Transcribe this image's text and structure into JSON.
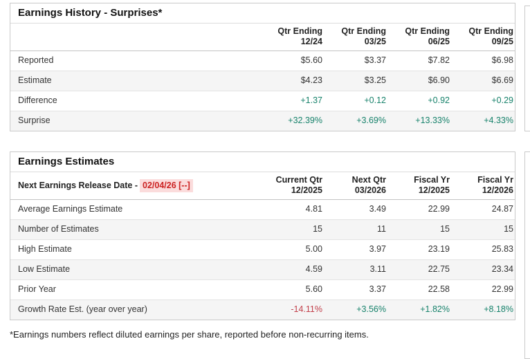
{
  "colors": {
    "positive_value": "#17826b",
    "negative_value": "#c2404b",
    "release_date_text": "#cc2222",
    "release_date_highlight": "#fbdcdc",
    "row_alt_background": "#f5f5f5",
    "card_border": "#c9c9c9"
  },
  "history": {
    "title": "Earnings History - Surprises*",
    "columns": [
      {
        "line1": "Qtr Ending",
        "line2": "12/24"
      },
      {
        "line1": "Qtr Ending",
        "line2": "03/25"
      },
      {
        "line1": "Qtr Ending",
        "line2": "06/25"
      },
      {
        "line1": "Qtr Ending",
        "line2": "09/25"
      }
    ],
    "rows": [
      {
        "label": "Reported",
        "values": [
          "$5.60",
          "$3.37",
          "$7.82",
          "$6.98"
        ]
      },
      {
        "label": "Estimate",
        "values": [
          "$4.23",
          "$3.25",
          "$6.90",
          "$6.69"
        ]
      },
      {
        "label": "Difference",
        "values": [
          "+1.37",
          "+0.12",
          "+0.92",
          "+0.29"
        ]
      },
      {
        "label": "Surprise",
        "values": [
          "+32.39%",
          "+3.69%",
          "+13.33%",
          "+4.33%"
        ]
      }
    ]
  },
  "estimates": {
    "title": "Earnings Estimates",
    "release_label": "Next Earnings Release Date -",
    "release_date": "02/04/26 [--]",
    "columns": [
      {
        "line1": "Current Qtr",
        "line2": "12/2025"
      },
      {
        "line1": "Next Qtr",
        "line2": "03/2026"
      },
      {
        "line1": "Fiscal Yr",
        "line2": "12/2025"
      },
      {
        "line1": "Fiscal Yr",
        "line2": "12/2026"
      }
    ],
    "rows": [
      {
        "label": "Average Earnings Estimate",
        "values": [
          "4.81",
          "3.49",
          "22.99",
          "24.87"
        ]
      },
      {
        "label": "Number of Estimates",
        "values": [
          "15",
          "11",
          "15",
          "15"
        ]
      },
      {
        "label": "High Estimate",
        "values": [
          "5.00",
          "3.97",
          "23.19",
          "25.83"
        ]
      },
      {
        "label": "Low Estimate",
        "values": [
          "4.59",
          "3.11",
          "22.75",
          "23.34"
        ]
      },
      {
        "label": "Prior Year",
        "values": [
          "5.60",
          "3.37",
          "22.58",
          "22.99"
        ]
      },
      {
        "label": "Growth Rate Est. (year over year)",
        "values": [
          "-14.11%",
          "+3.56%",
          "+1.82%",
          "+8.18%"
        ]
      }
    ]
  },
  "footnote": "*Earnings numbers reflect diluted earnings per share, reported before non-recurring items."
}
